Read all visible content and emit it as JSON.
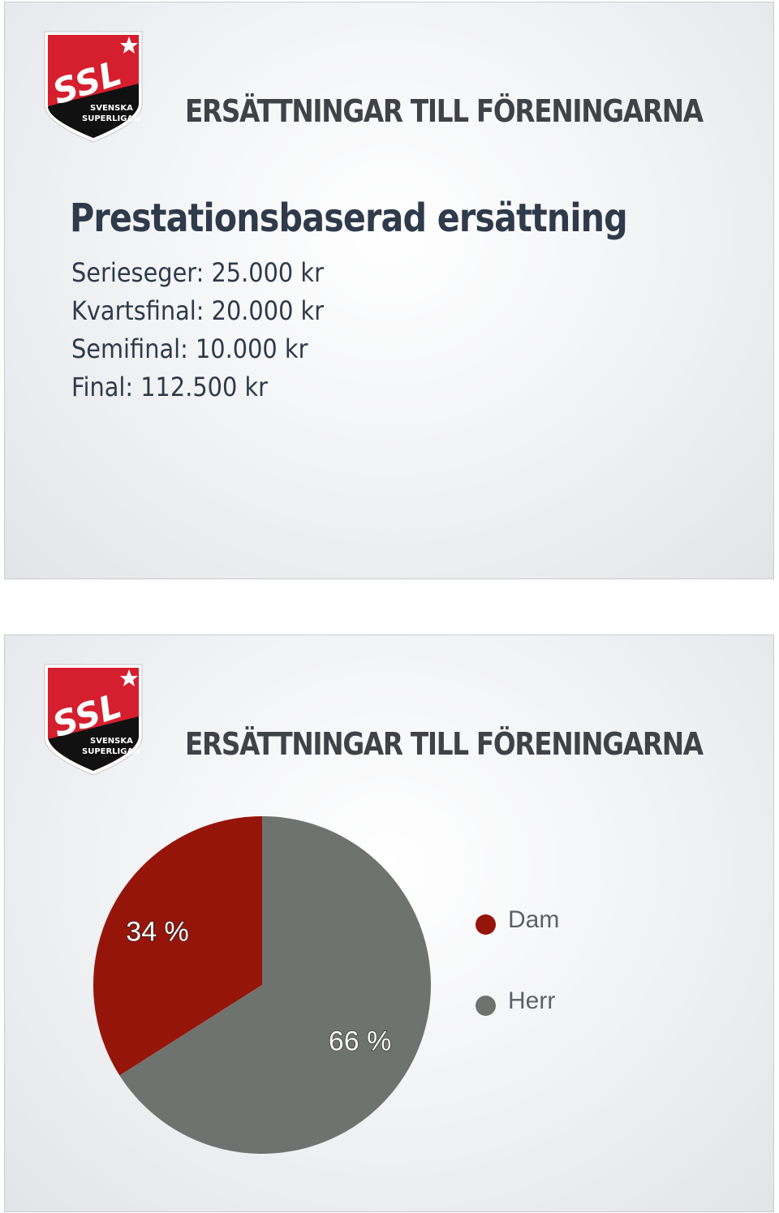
{
  "logo": {
    "brand": "SSL",
    "line1": "SVENSKA",
    "line2": "SUPERLIGAN",
    "colors": {
      "red": "#d51f2e",
      "black": "#111111",
      "white": "#ffffff"
    }
  },
  "slide1": {
    "title": "ERSÄTTNINGAR TILL FÖRENINGARNA",
    "heading": "Prestationsbaserad ersättning",
    "lines": [
      "Serieseger: 25.000 kr",
      "Kvartsfinal: 20.000 kr",
      "Semifinal: 10.000 kr",
      "Final: 112.500 kr"
    ]
  },
  "slide2": {
    "title": "ERSÄTTNINGAR TILL FÖRENINGARNA"
  },
  "chart_data": {
    "type": "pie",
    "categories": [
      "Dam",
      "Herr"
    ],
    "values": [
      34,
      66
    ],
    "labels": [
      "34 %",
      "66 %"
    ],
    "colors": [
      "#96150a",
      "#6f7370"
    ],
    "legend": "right",
    "start_angle": "12 o'clock, counter-clockwise for first slice"
  }
}
